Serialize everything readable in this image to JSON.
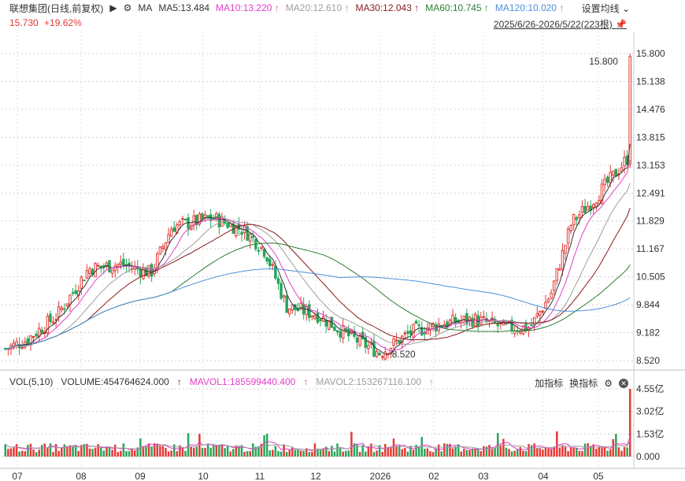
{
  "header": {
    "title": "联想集团(日线,前复权)",
    "ma_label": "MA",
    "ma_items": [
      {
        "label": "MA5:13.484",
        "color": "#333333"
      },
      {
        "label": "MA10:13.220",
        "color": "#e040c8"
      },
      {
        "label": "MA20:12.610",
        "color": "#9e9e9e"
      },
      {
        "label": "MA30:12.043",
        "color": "#8b1a1a"
      },
      {
        "label": "MA60:10.745",
        "color": "#2e7d32"
      },
      {
        "label": "MA120:10.020",
        "color": "#4a90d9"
      }
    ],
    "settings_label": "设置均线"
  },
  "price_line": {
    "price": "15.730",
    "change": "+19.62%",
    "color": "#e53935"
  },
  "range_label": "2025/6/26-2026/5/22(223根)",
  "volume_header": {
    "label": "VOL(5,10)",
    "volume": "VOLUME:454764624.000",
    "mavol1": "MAVOL1:185599440.400",
    "mavol2": "MAVOL2:153267116.100",
    "mavol1_color": "#e040c8",
    "mavol2_color": "#9e9e9e",
    "add_indicator": "加指标",
    "switch_indicator": "换指标"
  },
  "chart_data": {
    "type": "candlestick",
    "price_axis": {
      "ticks": [
        "15.800",
        "15.138",
        "14.476",
        "13.815",
        "13.153",
        "12.491",
        "11.829",
        "11.167",
        "10.505",
        "9.844",
        "9.182",
        "8.520"
      ],
      "ylim": [
        8.52,
        15.8
      ]
    },
    "volume_axis": {
      "ticks": [
        "4.55亿",
        "3.02亿",
        "1.53亿",
        "0.000"
      ]
    },
    "x_ticks": [
      "07",
      "08",
      "09",
      "10",
      "11",
      "12",
      "2026",
      "02",
      "03",
      "04",
      "05"
    ],
    "annotations": [
      {
        "text": "15.800",
        "type": "max"
      },
      {
        "text": "8.520",
        "type": "min"
      }
    ],
    "last": {
      "close": 15.73,
      "change_pct": 19.62
    },
    "up_color": "#e53935",
    "down_color": "#26a65b",
    "ma_close_values": {
      "MA5": 13.484,
      "MA10": 13.22,
      "MA20": 12.61,
      "MA30": 12.043,
      "MA60": 10.745,
      "MA120": 10.02
    },
    "volume_last": 454764624,
    "mavol1": 185599440.4,
    "mavol2": 153267116.1
  }
}
